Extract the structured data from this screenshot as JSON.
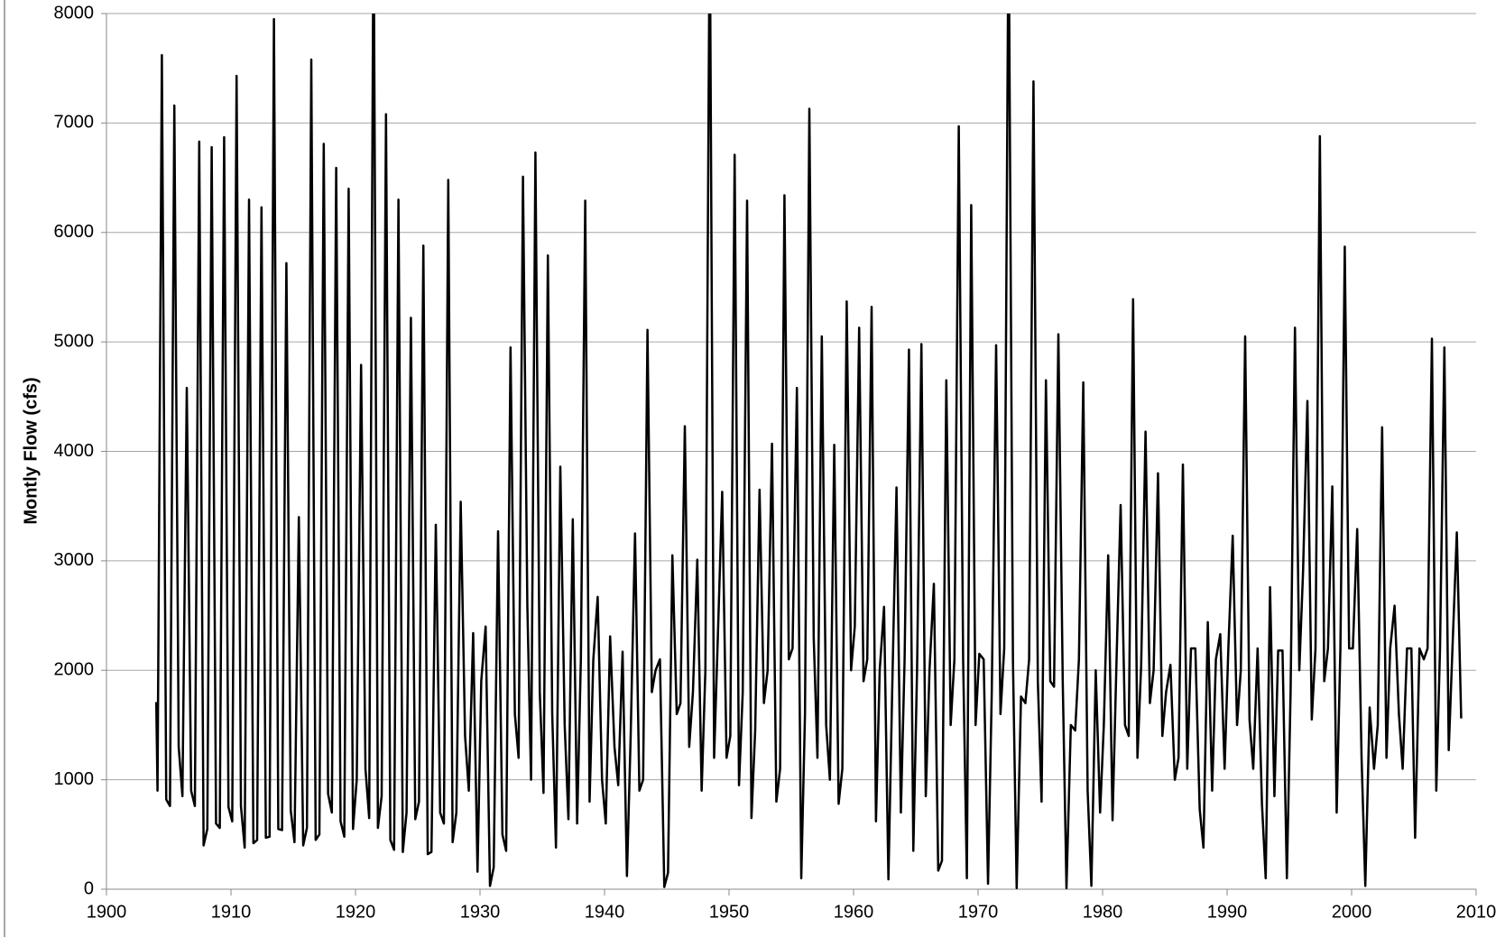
{
  "chart_data": {
    "type": "line",
    "ylabel": "Montly Flow (cfs)",
    "grid": true,
    "xlim": [
      1900,
      2010
    ],
    "xticks": [
      1900,
      1910,
      1920,
      1930,
      1940,
      1950,
      1960,
      1970,
      1980,
      1990,
      2000,
      2010
    ],
    "ylim": [
      0,
      8000
    ],
    "yticks": [
      0,
      1000,
      2000,
      3000,
      4000,
      5000,
      6000,
      7000,
      8000
    ],
    "series": [
      {
        "color": "#000000",
        "x": [
          1904.0,
          1904.1,
          1904.45,
          1904.8,
          1905.1,
          1905.45,
          1905.8,
          1906.1,
          1906.45,
          1906.8,
          1907.1,
          1907.45,
          1907.8,
          1908.1,
          1908.45,
          1908.8,
          1909.1,
          1909.45,
          1909.8,
          1910.1,
          1910.45,
          1910.8,
          1911.1,
          1911.45,
          1911.8,
          1912.1,
          1912.45,
          1912.8,
          1913.1,
          1913.45,
          1913.8,
          1914.1,
          1914.45,
          1914.8,
          1915.1,
          1915.45,
          1915.8,
          1916.1,
          1916.45,
          1916.8,
          1917.1,
          1917.45,
          1917.8,
          1918.1,
          1918.45,
          1918.8,
          1919.1,
          1919.45,
          1919.8,
          1920.1,
          1920.45,
          1920.8,
          1921.1,
          1921.45,
          1921.8,
          1922.1,
          1922.45,
          1922.8,
          1923.1,
          1923.45,
          1923.8,
          1924.1,
          1924.45,
          1924.8,
          1925.1,
          1925.45,
          1925.8,
          1926.1,
          1926.45,
          1926.8,
          1927.1,
          1927.45,
          1927.8,
          1928.1,
          1928.45,
          1928.8,
          1929.1,
          1929.45,
          1929.8,
          1930.1,
          1930.45,
          1930.8,
          1931.1,
          1931.45,
          1931.8,
          1932.1,
          1932.45,
          1932.8,
          1933.1,
          1933.45,
          1933.8,
          1934.1,
          1934.45,
          1934.8,
          1935.1,
          1935.45,
          1935.8,
          1936.1,
          1936.45,
          1936.8,
          1937.1,
          1937.45,
          1937.8,
          1938.1,
          1938.45,
          1938.8,
          1939.1,
          1939.45,
          1939.8,
          1940.1,
          1940.45,
          1940.8,
          1941.1,
          1941.45,
          1941.8,
          1942.1,
          1942.45,
          1942.8,
          1943.1,
          1943.45,
          1943.8,
          1944.1,
          1944.45,
          1944.8,
          1945.1,
          1945.45,
          1945.8,
          1946.1,
          1946.45,
          1946.8,
          1947.1,
          1947.45,
          1947.8,
          1948.1,
          1948.45,
          1948.8,
          1949.1,
          1949.45,
          1949.8,
          1950.1,
          1950.45,
          1950.8,
          1951.1,
          1951.45,
          1951.8,
          1952.1,
          1952.45,
          1952.8,
          1953.1,
          1953.45,
          1953.8,
          1954.1,
          1954.45,
          1954.8,
          1955.1,
          1955.45,
          1955.8,
          1956.1,
          1956.45,
          1956.8,
          1957.1,
          1957.45,
          1957.8,
          1958.1,
          1958.45,
          1958.8,
          1959.1,
          1959.45,
          1959.8,
          1960.1,
          1960.45,
          1960.8,
          1961.1,
          1961.45,
          1961.8,
          1962.1,
          1962.45,
          1962.8,
          1963.1,
          1963.45,
          1963.8,
          1964.1,
          1964.45,
          1964.8,
          1965.1,
          1965.45,
          1965.8,
          1966.1,
          1966.45,
          1966.8,
          1967.1,
          1967.45,
          1967.8,
          1968.1,
          1968.45,
          1968.8,
          1969.1,
          1969.45,
          1969.8,
          1970.1,
          1970.45,
          1970.8,
          1971.1,
          1971.45,
          1971.8,
          1972.1,
          1972.45,
          1972.8,
          1973.1,
          1973.45,
          1973.8,
          1974.1,
          1974.45,
          1974.8,
          1975.1,
          1975.45,
          1975.8,
          1976.1,
          1976.45,
          1976.8,
          1977.1,
          1977.45,
          1977.8,
          1978.1,
          1978.45,
          1978.8,
          1979.1,
          1979.45,
          1979.8,
          1980.1,
          1980.45,
          1980.8,
          1981.1,
          1981.45,
          1981.8,
          1982.1,
          1982.45,
          1982.8,
          1983.1,
          1983.45,
          1983.8,
          1984.1,
          1984.45,
          1984.8,
          1985.1,
          1985.45,
          1985.8,
          1986.1,
          1986.45,
          1986.8,
          1987.1,
          1987.45,
          1987.8,
          1988.1,
          1988.45,
          1988.8,
          1989.1,
          1989.45,
          1989.8,
          1990.1,
          1990.45,
          1990.8,
          1991.1,
          1991.45,
          1991.8,
          1992.1,
          1992.45,
          1992.8,
          1993.1,
          1993.45,
          1993.8,
          1994.1,
          1994.45,
          1994.8,
          1995.1,
          1995.45,
          1995.8,
          1996.1,
          1996.45,
          1996.8,
          1997.1,
          1997.45,
          1997.8,
          1998.1,
          1998.45,
          1998.8,
          1999.1,
          1999.45,
          1999.8,
          2000.1,
          2000.45,
          2000.8,
          2001.1,
          2001.45,
          2001.8,
          2002.1,
          2002.45,
          2002.8,
          2003.1,
          2003.45,
          2003.8,
          2004.1,
          2004.45,
          2004.8,
          2005.1,
          2005.45,
          2005.8,
          2006.1,
          2006.45,
          2006.8,
          2007.1,
          2007.45,
          2007.8,
          2008.1,
          2008.45,
          2008.8
        ],
        "values": [
          1710,
          900,
          7620,
          820,
          760,
          7160,
          1300,
          850,
          4580,
          900,
          760,
          6830,
          400,
          550,
          6780,
          600,
          560,
          6870,
          750,
          620,
          7430,
          760,
          380,
          6300,
          420,
          450,
          6230,
          470,
          480,
          7950,
          550,
          540,
          5720,
          720,
          430,
          3400,
          400,
          560,
          7580,
          450,
          500,
          6810,
          870,
          700,
          6590,
          620,
          480,
          6400,
          550,
          1000,
          4790,
          1100,
          650,
          9000,
          560,
          850,
          7080,
          450,
          360,
          6300,
          340,
          700,
          5220,
          640,
          800,
          5880,
          320,
          340,
          3330,
          700,
          600,
          6480,
          430,
          700,
          3540,
          1400,
          900,
          2340,
          160,
          1900,
          2400,
          30,
          200,
          3270,
          500,
          350,
          4950,
          1600,
          1200,
          6510,
          2600,
          1000,
          6730,
          1800,
          880,
          5790,
          1600,
          380,
          3860,
          1500,
          640,
          3380,
          600,
          2100,
          6290,
          800,
          2100,
          2670,
          1000,
          600,
          2310,
          1300,
          950,
          2170,
          120,
          1400,
          3250,
          900,
          1000,
          5110,
          1800,
          2000,
          2100,
          20,
          150,
          3050,
          1600,
          1700,
          4230,
          1300,
          1800,
          3010,
          900,
          2000,
          9000,
          1200,
          2300,
          3630,
          1200,
          1400,
          6710,
          950,
          1800,
          6290,
          650,
          1450,
          3650,
          1700,
          2000,
          4070,
          800,
          1100,
          6340,
          2100,
          2200,
          4580,
          100,
          1600,
          7130,
          2300,
          1200,
          5050,
          1500,
          1000,
          4060,
          780,
          1100,
          5370,
          2000,
          2400,
          5130,
          1900,
          2100,
          5320,
          620,
          2000,
          2580,
          90,
          1800,
          3670,
          700,
          2100,
          4930,
          350,
          2000,
          4980,
          850,
          2000,
          2790,
          170,
          260,
          4650,
          1500,
          2100,
          6970,
          2100,
          100,
          6250,
          1500,
          2150,
          2100,
          50,
          1800,
          4970,
          1600,
          2200,
          9000,
          2100,
          10,
          1760,
          1700,
          2100,
          7380,
          1900,
          800,
          4650,
          1900,
          1850,
          5070,
          1900,
          10,
          1500,
          1450,
          2100,
          4630,
          900,
          30,
          2000,
          700,
          1500,
          3050,
          630,
          2000,
          3510,
          1500,
          1400,
          5390,
          1200,
          2050,
          4180,
          1700,
          2000,
          3800,
          1400,
          1800,
          2050,
          1000,
          1200,
          3880,
          1100,
          2200,
          2200,
          730,
          380,
          2440,
          900,
          2100,
          2330,
          1100,
          2200,
          3230,
          1500,
          2000,
          5050,
          1550,
          1100,
          2200,
          780,
          100,
          2760,
          850,
          2180,
          2180,
          100,
          1800,
          5130,
          2000,
          2900,
          4460,
          1550,
          2200,
          6880,
          1900,
          2200,
          3680,
          700,
          2200,
          5870,
          2200,
          2200,
          3290,
          1200,
          30,
          1660,
          1100,
          1500,
          4220,
          1200,
          2200,
          2590,
          1600,
          1100,
          2200,
          2200,
          470,
          2200,
          2100,
          2200,
          5030,
          900,
          2200,
          4950,
          1270,
          2200,
          3260,
          1560
        ]
      }
    ]
  }
}
